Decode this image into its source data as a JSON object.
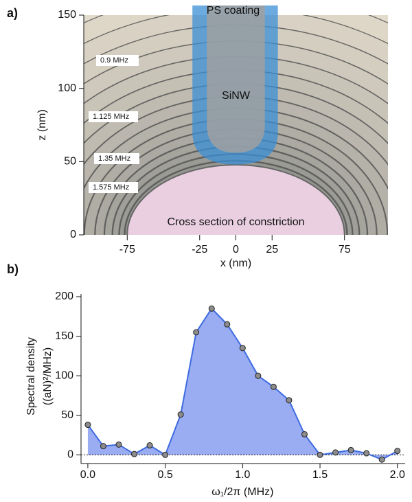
{
  "chart_data": [
    {
      "type": "contour",
      "panel_label": "a)",
      "xlabel": "x (nm)",
      "ylabel": "z (nm)",
      "xlim": [
        -105,
        105
      ],
      "ylim": [
        0,
        150
      ],
      "xticks": [
        -75,
        -25,
        0,
        25,
        75
      ],
      "yticks": [
        0,
        50,
        100,
        150
      ],
      "contour_labels": [
        "0.9 MHz",
        "1.125 MHz",
        "1.35 MHz",
        "1.575 MHz"
      ],
      "annotations": [
        "PS coating",
        "SiNW",
        "Cross section of constriction"
      ]
    },
    {
      "type": "area",
      "panel_label": "b)",
      "xlabel": "ω₁/2π (MHz)",
      "ylabel": [
        "Spectral density",
        "((aN)²/MHz)"
      ],
      "x": [
        0,
        0.1,
        0.2,
        0.3,
        0.4,
        0.5,
        0.6,
        0.7,
        0.8,
        0.9,
        1.0,
        1.1,
        1.2,
        1.3,
        1.4,
        1.5,
        1.6,
        1.7,
        1.8,
        1.9,
        2.0
      ],
      "series": [
        {
          "color": "#3d6be0",
          "fill": "#9aacf2",
          "values": [
            38,
            11,
            13,
            1,
            12,
            0,
            51,
            155,
            185,
            165,
            135,
            100,
            86,
            69,
            26,
            0,
            3,
            6,
            2,
            -6,
            5
          ]
        }
      ],
      "xlim": [
        -0.044,
        2.05
      ],
      "ylim": [
        -11,
        200
      ],
      "xticks": [
        {
          "value": 0,
          "label": "0.0"
        },
        0.5,
        {
          "value": 1,
          "label": "1.0"
        },
        1.5,
        {
          "value": 2,
          "label": "2.0"
        }
      ],
      "yticks": [
        0,
        50,
        100,
        150,
        200
      ],
      "zero_line": true
    }
  ]
}
